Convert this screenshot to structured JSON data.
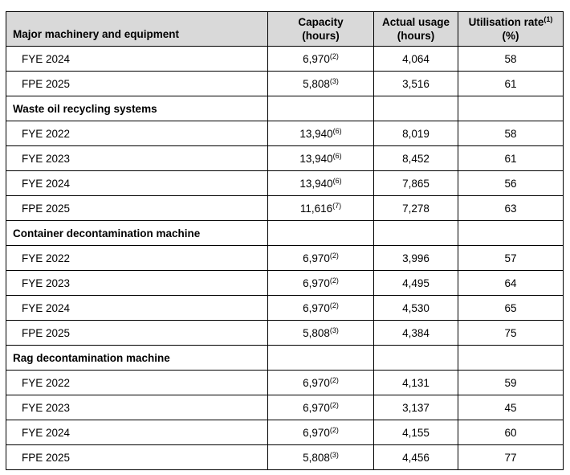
{
  "page": {
    "background_color": "#ffffff",
    "header_bg_color": "#d9d9d9",
    "border_color": "#000000"
  },
  "table": {
    "header": {
      "col1": "Major machinery and equipment",
      "capacity": {
        "line1": "Capacity",
        "line2": "(hours)"
      },
      "actual_usage": {
        "line1": "Actual usage",
        "line2": "(hours)"
      },
      "utilisation": {
        "line1": "Utilisation rate",
        "sup": "(1)",
        "line2": "(%)"
      }
    },
    "rows": [
      {
        "type": "data",
        "label": "FYE 2024",
        "capacity": "6,970",
        "capacity_sup": "(2)",
        "usage": "4,064",
        "rate": "58"
      },
      {
        "type": "data",
        "label": "FPE 2025",
        "capacity": "5,808",
        "capacity_sup": "(3)",
        "usage": "3,516",
        "rate": "61"
      },
      {
        "type": "section",
        "label": "Waste oil recycling systems",
        "capacity": "",
        "capacity_sup": "",
        "usage": "",
        "rate": ""
      },
      {
        "type": "data",
        "label": "FYE 2022",
        "capacity": "13,940",
        "capacity_sup": "(6)",
        "usage": "8,019",
        "rate": "58"
      },
      {
        "type": "data",
        "label": "FYE 2023",
        "capacity": "13,940",
        "capacity_sup": "(6)",
        "usage": "8,452",
        "rate": "61"
      },
      {
        "type": "data",
        "label": "FYE 2024",
        "capacity": "13,940",
        "capacity_sup": "(6)",
        "usage": "7,865",
        "rate": "56"
      },
      {
        "type": "data",
        "label": "FPE 2025",
        "capacity": "11,616",
        "capacity_sup": "(7)",
        "usage": "7,278",
        "rate": "63"
      },
      {
        "type": "section",
        "label": "Container decontamination machine",
        "capacity": "",
        "capacity_sup": "",
        "usage": "",
        "rate": ""
      },
      {
        "type": "data",
        "label": "FYE 2022",
        "capacity": "6,970",
        "capacity_sup": "(2)",
        "usage": "3,996",
        "rate": "57"
      },
      {
        "type": "data",
        "label": "FYE 2023",
        "capacity": "6,970",
        "capacity_sup": "(2)",
        "usage": "4,495",
        "rate": "64"
      },
      {
        "type": "data",
        "label": "FYE 2024",
        "capacity": "6,970",
        "capacity_sup": "(2)",
        "usage": "4,530",
        "rate": "65"
      },
      {
        "type": "data",
        "label": "FPE 2025",
        "capacity": "5,808",
        "capacity_sup": "(3)",
        "usage": "4,384",
        "rate": "75"
      },
      {
        "type": "section",
        "label": "Rag decontamination machine",
        "capacity": "",
        "capacity_sup": "",
        "usage": "",
        "rate": ""
      },
      {
        "type": "data",
        "label": "FYE 2022",
        "capacity": "6,970",
        "capacity_sup": "(2)",
        "usage": "4,131",
        "rate": "59"
      },
      {
        "type": "data",
        "label": "FYE 2023",
        "capacity": "6,970",
        "capacity_sup": "(2)",
        "usage": "3,137",
        "rate": "45"
      },
      {
        "type": "data",
        "label": "FYE 2024",
        "capacity": "6,970",
        "capacity_sup": "(2)",
        "usage": "4,155",
        "rate": "60"
      },
      {
        "type": "data",
        "label": "FPE 2025",
        "capacity": "5,808",
        "capacity_sup": "(3)",
        "usage": "4,456",
        "rate": "77"
      }
    ]
  }
}
